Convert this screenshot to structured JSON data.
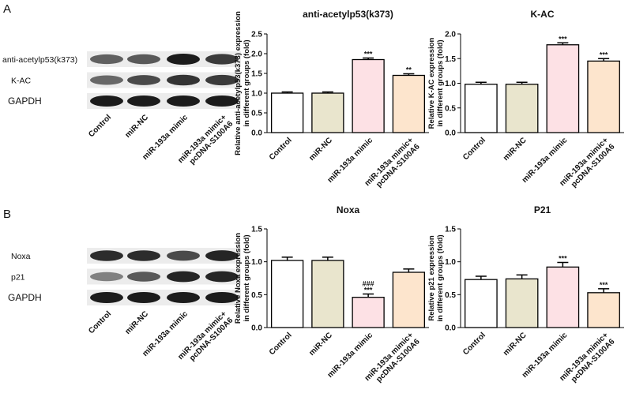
{
  "panels": [
    {
      "label": "A",
      "rows": [
        "anti-acetylp53(k373)",
        "K-AC",
        "GAPDH"
      ],
      "lanes": [
        "Control",
        "miR-NC",
        "miR-193a mimic",
        "miR-193a mimic+\npcDNA-S100A6"
      ]
    },
    {
      "label": "B",
      "rows": [
        "Noxa",
        "p21",
        "GAPDH"
      ],
      "lanes": [
        "Control",
        "miR-NC",
        "miR-193a mimic",
        "miR-193a mimic+\npcDNA-S100A6"
      ]
    }
  ],
  "chart_data": [
    {
      "type": "bar",
      "title": "anti-acetylp53(k373)",
      "ylabel": [
        "Relative anti-acetylp53(k373) expression",
        "in different groups (fold)"
      ],
      "categories": [
        "Control",
        "miR-NC",
        "miR-193a mimic",
        "miR-193a mimic+\npcDNA-S100A6"
      ],
      "values": [
        1.0,
        1.0,
        1.85,
        1.45
      ],
      "errors": [
        0.03,
        0.03,
        0.04,
        0.04
      ],
      "colors": [
        "#ffffff",
        "#e9e5cd",
        "#fde1e5",
        "#fde5cd"
      ],
      "annotations": [
        null,
        null,
        [
          "***"
        ],
        [
          "**"
        ]
      ],
      "ylim": [
        0,
        2.5
      ],
      "yticks": [
        {
          "value": 0,
          "label": "0.0"
        },
        0.5,
        {
          "value": 1,
          "label": "1.0"
        },
        1.5,
        {
          "value": 2,
          "label": "2.0"
        },
        2.5
      ]
    },
    {
      "type": "bar",
      "title": "K-AC",
      "ylabel": [
        "Relative K-AC expression",
        "in different groups (fold)"
      ],
      "categories": [
        "Control",
        "miR-NC",
        "miR-193a mimic",
        "miR-193a mimic+\npcDNA-S100A6"
      ],
      "values": [
        0.98,
        0.98,
        1.78,
        1.45
      ],
      "errors": [
        0.04,
        0.04,
        0.04,
        0.05
      ],
      "colors": [
        "#ffffff",
        "#e9e5cd",
        "#fde1e5",
        "#fde5cd"
      ],
      "annotations": [
        null,
        null,
        [
          "***"
        ],
        [
          "***"
        ]
      ],
      "ylim": [
        0,
        2
      ],
      "yticks": [
        {
          "value": 0,
          "label": "0.0"
        },
        0.5,
        {
          "value": 1,
          "label": "1.0"
        },
        1.5,
        {
          "value": 2,
          "label": "2.0"
        }
      ]
    },
    {
      "type": "bar",
      "title": "Noxa",
      "ylabel": [
        "Relative Noxa expression",
        "in different groups (fold)"
      ],
      "categories": [
        "Control",
        "miR-NC",
        "miR-193a mimic",
        "miR-193a mimic+\npcDNA-S100A6"
      ],
      "values": [
        1.02,
        1.02,
        0.46,
        0.84
      ],
      "errors": [
        0.05,
        0.05,
        0.05,
        0.05
      ],
      "colors": [
        "#ffffff",
        "#e9e5cd",
        "#fde1e5",
        "#fde5cd"
      ],
      "annotations": [
        null,
        null,
        [
          "###",
          "***"
        ],
        null
      ],
      "ylim": [
        0,
        1.5
      ],
      "yticks": [
        {
          "value": 0,
          "label": "0.0"
        },
        0.5,
        {
          "value": 1,
          "label": "1.0"
        },
        1.5
      ]
    },
    {
      "type": "bar",
      "title": "P21",
      "ylabel": [
        "Relative p21 expression",
        "in different groups (fold)"
      ],
      "categories": [
        "Control",
        "miR-NC",
        "miR-193a mimic",
        "miR-193a mimic+\npcDNA-S100A6"
      ],
      "values": [
        0.73,
        0.74,
        0.92,
        0.53
      ],
      "errors": [
        0.05,
        0.06,
        0.07,
        0.06
      ],
      "colors": [
        "#ffffff",
        "#e9e5cd",
        "#fde1e5",
        "#fde5cd"
      ],
      "annotations": [
        null,
        null,
        [
          "***"
        ],
        [
          "***"
        ]
      ],
      "ylim": [
        0,
        1.5
      ],
      "yticks": [
        {
          "value": 0,
          "label": "0.0"
        },
        0.5,
        {
          "value": 1,
          "label": "1.0"
        },
        1.5
      ]
    }
  ]
}
